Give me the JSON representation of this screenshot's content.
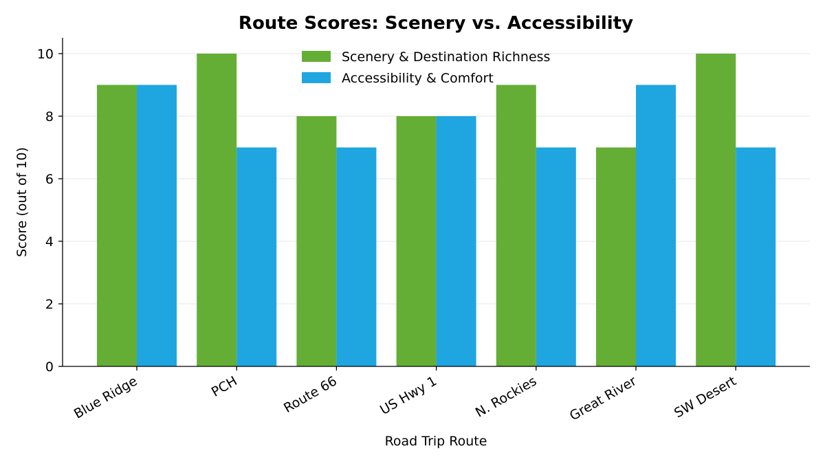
{
  "chart_data": {
    "type": "bar",
    "title": "Route Scores: Scenery vs. Accessibility",
    "xlabel": "Road Trip Route",
    "ylabel": "Score (out of 10)",
    "categories": [
      "Blue Ridge",
      "PCH",
      "Route 66",
      "US Hwy 1",
      "N. Rockies",
      "Great River",
      "SW Desert"
    ],
    "series": [
      {
        "name": "Scenery & Destination Richness",
        "values": [
          9,
          10,
          8,
          8,
          9,
          7,
          10
        ],
        "color": "#64ae35"
      },
      {
        "name": "Accessibility & Comfort",
        "values": [
          9,
          7,
          7,
          8,
          7,
          9,
          7
        ],
        "color": "#1fa6e0"
      }
    ],
    "ylim": [
      0,
      10.5
    ],
    "yticks": [
      0,
      2,
      4,
      6,
      8,
      10
    ],
    "grid": "horizontal",
    "legend_position": "top-center"
  }
}
